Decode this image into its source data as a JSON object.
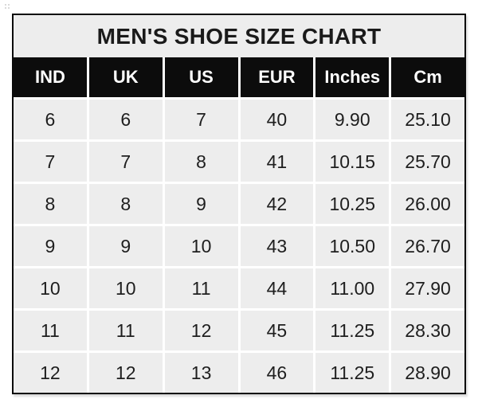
{
  "chart_data": {
    "type": "table",
    "title": "MEN'S SHOE SIZE CHART",
    "columns": [
      "IND",
      "UK",
      "US",
      "EUR",
      "Inches",
      "Cm"
    ],
    "rows": [
      [
        "6",
        "6",
        "7",
        "40",
        "9.90",
        "25.10"
      ],
      [
        "7",
        "7",
        "8",
        "41",
        "10.15",
        "25.70"
      ],
      [
        "8",
        "8",
        "9",
        "42",
        "10.25",
        "26.00"
      ],
      [
        "9",
        "9",
        "10",
        "43",
        "10.50",
        "26.70"
      ],
      [
        "10",
        "10",
        "11",
        "44",
        "11.00",
        "27.90"
      ],
      [
        "11",
        "11",
        "12",
        "45",
        "11.25",
        "28.30"
      ],
      [
        "12",
        "12",
        "13",
        "46",
        "11.25",
        "28.90"
      ]
    ],
    "layout": {
      "grid": "white gridlines between all cells",
      "legend": "none",
      "row_count": 7,
      "column_count": 6
    }
  },
  "colors": {
    "border": "#0a0a0a",
    "title_bg": "#ededed",
    "title_text": "#1a1a1a",
    "header_bg": "#0c0c0c",
    "header_text": "#ffffff",
    "cell_bg": "#ededed",
    "cell_text": "#1e1e1e",
    "gridline": "#ffffff",
    "page_bg": "#ffffff"
  }
}
